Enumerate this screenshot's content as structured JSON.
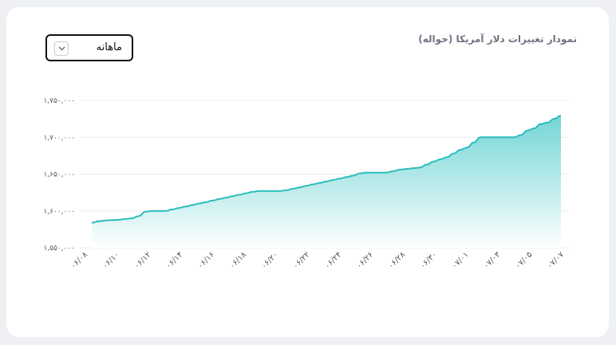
{
  "header": {
    "title": "نمودار تغییرات دلار آمریکا (حواله)",
    "period_select": {
      "value": "ماهانه",
      "icon": "chevron-down-icon"
    }
  },
  "colors": {
    "line": "#2bbcbc",
    "fill_top": "#5ccfcf",
    "fill_bottom": "#ffffff",
    "grid": "#ececec",
    "text": "#555555"
  },
  "chart_data": {
    "type": "area",
    "title": "نمودار تغییرات دلار آمریکا (حواله)",
    "xlabel": "",
    "ylabel": "",
    "ylim": [
      1550000,
      1750000
    ],
    "y_ticks": [
      1550000,
      1600000,
      1650000,
      1700000,
      1750000
    ],
    "y_tick_labels": [
      "۱,۵۵۰,۰۰۰",
      "۱,۶۰۰,۰۰۰",
      "۱,۶۵۰,۰۰۰",
      "۱,۷۰۰,۰۰۰",
      "۱,۷۵۰,۰۰۰"
    ],
    "x_tick_labels": [
      "۰۶/۰۸",
      "۰۶/۱۰",
      "۰۶/۱۲",
      "۰۶/۱۴",
      "۰۶/۱۶",
      "۰۶/۱۸",
      "۰۶/۲۰",
      "۰۶/۲۲",
      "۰۶/۲۴",
      "۰۶/۲۶",
      "۰۶/۲۸",
      "۰۶/۳۰",
      "۰۷/۰۱",
      "۰۷/۰۳",
      "۰۷/۰۵",
      "۰۷/۰۷"
    ],
    "grid": true,
    "legend": "none",
    "series": [
      {
        "values": [
          1584000,
          1586000,
          1587000,
          1587500,
          1588000,
          1589000,
          1590000,
          1593000,
          1599000,
          1600000,
          1600000,
          1600000,
          1602000,
          1604000,
          1606000,
          1608000,
          1610000,
          1612000,
          1614000,
          1616000,
          1618000,
          1620000,
          1622000,
          1624000,
          1626000,
          1627000,
          1627000,
          1627000,
          1627000,
          1628000,
          1630000,
          1632000,
          1634000,
          1636000,
          1638000,
          1640000,
          1642000,
          1644000,
          1646000,
          1648000,
          1651000,
          1652000,
          1652000,
          1652000,
          1652000,
          1654000,
          1656000,
          1657000,
          1658000,
          1659000,
          1663000,
          1667000,
          1670000,
          1673000,
          1678000,
          1683000,
          1686000,
          1693000,
          1700000,
          1700000,
          1700000,
          1700000,
          1700000,
          1700000,
          1703000,
          1709000,
          1712000,
          1718000,
          1720000,
          1725000,
          1729000
        ]
      }
    ]
  }
}
